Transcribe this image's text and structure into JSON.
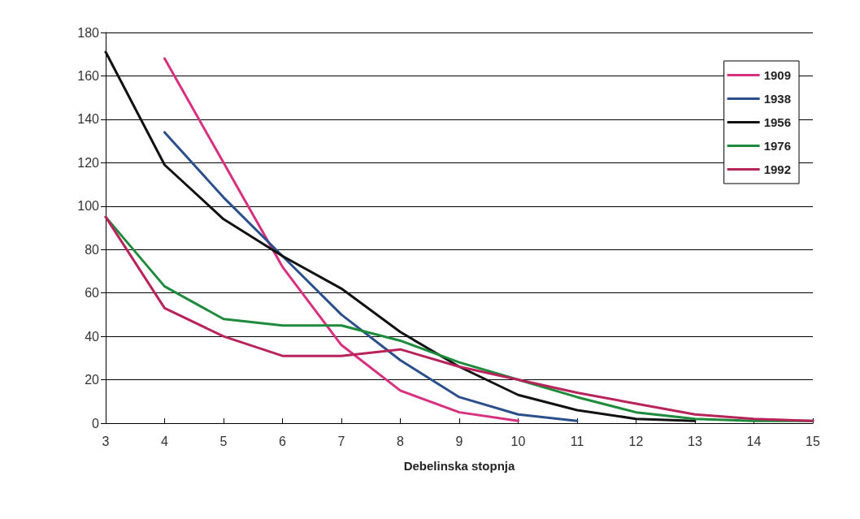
{
  "chart_data": {
    "type": "line",
    "xlabel": "Debelinska stopnja",
    "x": [
      3,
      4,
      5,
      6,
      7,
      8,
      9,
      10,
      11,
      12,
      13,
      14,
      15
    ],
    "xlim": [
      3,
      15
    ],
    "xticks": [
      3,
      4,
      5,
      6,
      7,
      8,
      9,
      10,
      11,
      12,
      13,
      14,
      15
    ],
    "ylim": [
      0,
      180
    ],
    "yticks": [
      0,
      20,
      40,
      60,
      80,
      100,
      120,
      140,
      160,
      180
    ],
    "grid": "y",
    "legend": "top right",
    "marker": "none",
    "line_style": "solid",
    "series": [
      {
        "name": "1909",
        "color": "#d6307f",
        "values": [
          null,
          168,
          120,
          72,
          36,
          15,
          5,
          1,
          null,
          null,
          null,
          null,
          null
        ]
      },
      {
        "name": "1938",
        "color": "#2a4f8a",
        "values": [
          null,
          134,
          104,
          77,
          50,
          29,
          12,
          4,
          1,
          null,
          null,
          null,
          null
        ]
      },
      {
        "name": "1956",
        "color": "#111111",
        "values": [
          171,
          119,
          94,
          77,
          62,
          42,
          26,
          13,
          6,
          2,
          1,
          null,
          null
        ]
      },
      {
        "name": "1976",
        "color": "#1e8a3c",
        "values": [
          95,
          63,
          48,
          45,
          45,
          38,
          28,
          20,
          12,
          5,
          2,
          1,
          1
        ]
      },
      {
        "name": "1992",
        "color": "#b8235a",
        "values": [
          95,
          53,
          40,
          31,
          31,
          34,
          26,
          20,
          14,
          9,
          4,
          2,
          1
        ]
      }
    ]
  }
}
